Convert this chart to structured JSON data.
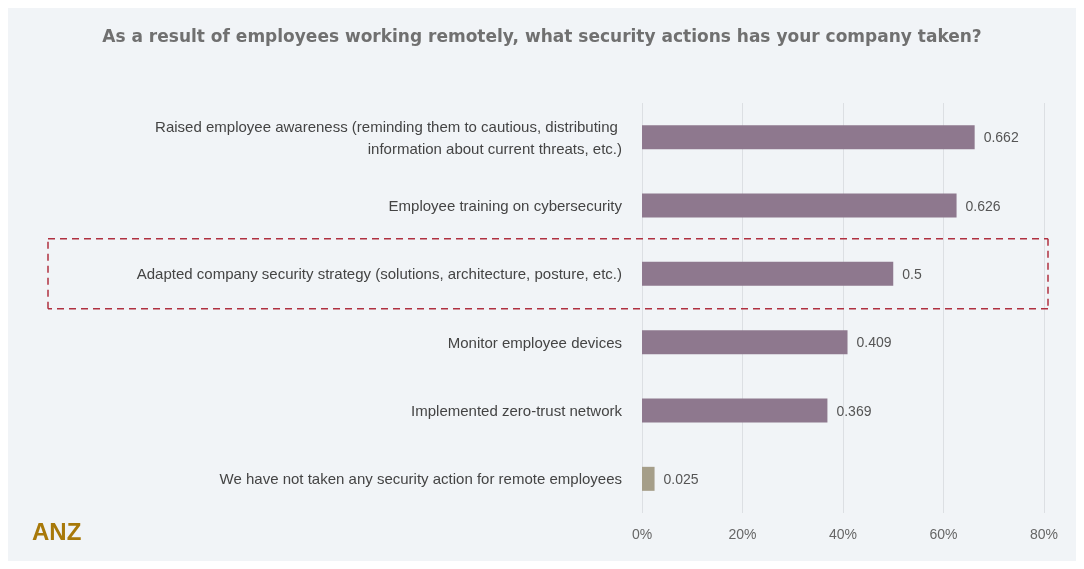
{
  "chart_data": {
    "type": "bar",
    "orientation": "horizontal",
    "title": "As a result of employees working remotely, what security actions has your company taken?",
    "categories": [
      "Raised employee awareness (reminding them to cautious, distributing information about current threats, etc.)",
      "Employee training on cybersecurity",
      "Adapted company security strategy (solutions, architecture, posture, etc.)",
      "Monitor employee devices",
      "Implemented zero-trust network",
      "We have not taken any security action for remote employees"
    ],
    "values": [
      0.662,
      0.626,
      0.5,
      0.409,
      0.369,
      0.025
    ],
    "colors": [
      "#8e788e",
      "#8e788e",
      "#8e788e",
      "#8e788e",
      "#8e788e",
      "#a59e89"
    ],
    "xlim": [
      0,
      0.8
    ],
    "xticks": [
      {
        "value": 0,
        "label": "0%"
      },
      {
        "value": 0.2,
        "label": "20%"
      },
      {
        "value": 0.4,
        "label": "40%"
      },
      {
        "value": 0.6,
        "label": "60%"
      },
      {
        "value": 0.8,
        "label": "80%"
      }
    ],
    "grid": "x",
    "data_labels": true,
    "annotations": [
      "ANZ"
    ]
  }
}
